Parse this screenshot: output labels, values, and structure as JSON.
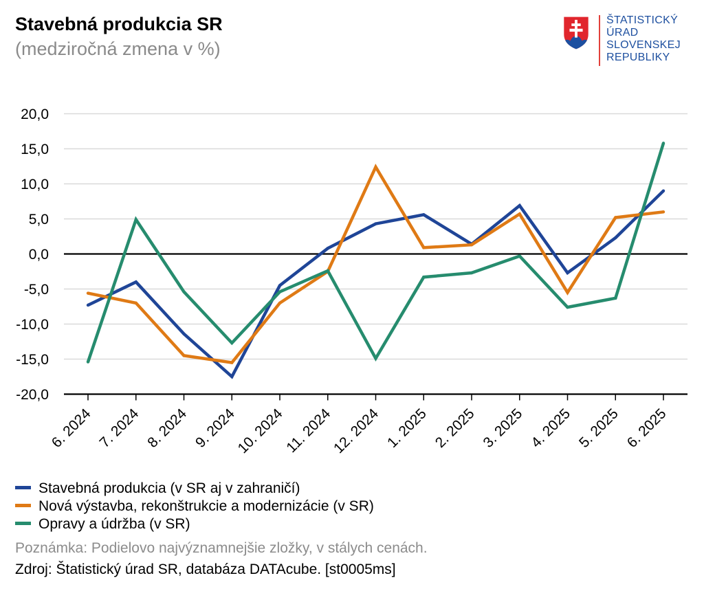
{
  "logo": {
    "lines": [
      "ŠTATISTICKÝ",
      "ÚRAD",
      "SLOVENSKEJ",
      "REPUBLIKY"
    ]
  },
  "chart_data": {
    "type": "line",
    "title": "Stavebná produkcia SR",
    "subtitle": "(medziročná zmena v %)",
    "categories": [
      "6. 2024",
      "7. 2024",
      "8. 2024",
      "9. 2024",
      "10. 2024",
      "11. 2024",
      "12. 2024",
      "1. 2025",
      "2. 2025",
      "3. 2025",
      "4. 2025",
      "5. 2025",
      "6. 2025"
    ],
    "ylim": [
      -20,
      20
    ],
    "yticks": [
      20,
      15,
      10,
      5,
      0,
      -5,
      -10,
      -15,
      -20
    ],
    "ytick_labels": [
      "20,0",
      "15,0",
      "10,0",
      "5,0",
      "0,0",
      "-5,0",
      "-10,0",
      "-15,0",
      "-20,0"
    ],
    "grid": true,
    "legend": "bottom-left",
    "series": [
      {
        "name": "Stavebná produkcia (v SR aj v zahraničí)",
        "color": "#1f4597",
        "values": [
          -7.3,
          -4.0,
          -11.4,
          -17.5,
          -4.5,
          0.8,
          4.3,
          5.6,
          1.4,
          6.9,
          -2.7,
          2.3,
          9.0
        ]
      },
      {
        "name": "Nová výstavba, rekonštrukcie a modernizácie (v SR)",
        "color": "#df7a15",
        "values": [
          -5.6,
          -7.0,
          -14.5,
          -15.5,
          -7.0,
          -2.5,
          12.4,
          0.9,
          1.3,
          5.7,
          -5.5,
          5.2,
          6.0
        ]
      },
      {
        "name": "Opravy a údržba (v SR)",
        "color": "#268c6e",
        "values": [
          -15.4,
          4.9,
          -5.4,
          -12.7,
          -5.4,
          -2.4,
          -14.9,
          -3.3,
          -2.7,
          -0.3,
          -7.6,
          -6.3,
          15.8
        ]
      }
    ]
  },
  "footer": {
    "note": "Poznámka: Podielovo najvýznamnejšie zložky, v stálych cenách.",
    "source": "Zdroj: Štatistický úrad SR, databáza DATAcube. [st0005ms]"
  }
}
